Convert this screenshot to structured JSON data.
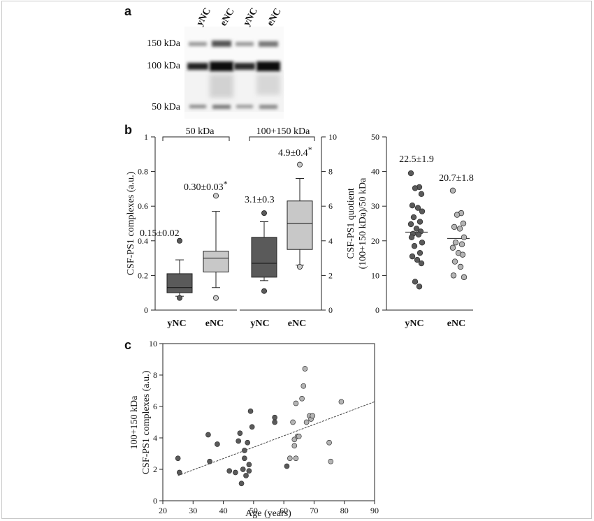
{
  "panel_labels": {
    "a": "a",
    "b": "b",
    "c": "c"
  },
  "blot": {
    "lanes": [
      "yNC",
      "eNC",
      "yNC",
      "eNC"
    ],
    "markers": [
      "150 kDa",
      "100 kDa",
      "50 kDa"
    ]
  },
  "chart_data": [
    {
      "id": "b-left-50kDa",
      "type": "box",
      "group_label": "50 kDa",
      "ylabel": "CSF-PS1 complexes (a.u.)",
      "ylim": [
        0,
        1
      ],
      "yticks": [
        "0",
        "0.2",
        "0.4",
        "0.6",
        "0.8",
        "1"
      ],
      "categories": [
        "yNC",
        "eNC"
      ],
      "boxes": [
        {
          "name": "yNC",
          "min": 0.08,
          "q1": 0.1,
          "median": 0.13,
          "q3": 0.21,
          "max": 0.29,
          "outliers": [
            0.4,
            0.07
          ],
          "annotation": "0.15±0.02",
          "color": "#5a5a5a"
        },
        {
          "name": "eNC",
          "min": 0.13,
          "q1": 0.22,
          "median": 0.3,
          "q3": 0.34,
          "max": 0.57,
          "outliers": [
            0.66,
            0.07
          ],
          "annotation": "0.30±0.03",
          "star": "*",
          "color": "#c8c8c8"
        }
      ]
    },
    {
      "id": "b-left-100-150kDa",
      "type": "box",
      "group_label": "100+150 kDa",
      "ylim": [
        0,
        10
      ],
      "yticks": [
        "0",
        "2",
        "4",
        "6",
        "8",
        "10"
      ],
      "categories": [
        "yNC",
        "eNC"
      ],
      "boxes": [
        {
          "name": "yNC",
          "min": 1.7,
          "q1": 1.9,
          "median": 2.7,
          "q3": 4.2,
          "max": 5.1,
          "outliers": [
            5.6,
            1.1
          ],
          "annotation": "3.1±0.3",
          "color": "#5a5a5a"
        },
        {
          "name": "eNC",
          "min": 2.6,
          "q1": 3.5,
          "median": 5.0,
          "q3": 6.3,
          "max": 7.6,
          "outliers": [
            8.4,
            2.5
          ],
          "annotation": "4.9±0.4",
          "star": "*",
          "color": "#c8c8c8"
        }
      ]
    },
    {
      "id": "b-right-quotient",
      "type": "scatter",
      "ylabel_line1": "CSF-PS1 quotient",
      "ylabel_line2": "(100+150 kDa)/50 kDa",
      "ylim": [
        0,
        50
      ],
      "yticks": [
        "0",
        "10",
        "20",
        "30",
        "40",
        "50"
      ],
      "categories": [
        "yNC",
        "eNC"
      ],
      "groups": [
        {
          "name": "yNC",
          "mean": 22.5,
          "annotation": "22.5±1.9",
          "color": "#5a5a5a",
          "values": [
            39.5,
            35.5,
            35.2,
            33.5,
            30.2,
            29.5,
            28.5,
            26.8,
            25.5,
            24.8,
            23.5,
            22.7,
            22.0,
            21.8,
            21.0,
            19.5,
            18.5,
            16.5,
            15.5,
            14.5,
            13.5,
            8.2,
            6.8
          ]
        },
        {
          "name": "eNC",
          "mean": 20.7,
          "annotation": "20.7±1.8",
          "color": "#b4b4b4",
          "values": [
            34.5,
            28.0,
            27.5,
            25.0,
            24.0,
            23.5,
            21.0,
            19.5,
            19.0,
            18.0,
            16.5,
            16.0,
            14.0,
            12.5,
            10.0,
            9.5
          ]
        }
      ]
    },
    {
      "id": "c-age-scatter",
      "type": "scatter",
      "xlabel": "Age (years)",
      "ylabel_line1": "100+150 kDa",
      "ylabel_line2": "CSF-PS1 complexes (a.u.)",
      "xlim": [
        20,
        90
      ],
      "ylim": [
        0,
        10
      ],
      "xticks": [
        "20",
        "30",
        "40",
        "50",
        "60",
        "70",
        "80",
        "90"
      ],
      "yticks": [
        "0",
        "2",
        "4",
        "6",
        "8",
        "10"
      ],
      "fit_line": [
        [
          25,
          1.6
        ],
        [
          90,
          6.3
        ]
      ],
      "series": [
        {
          "name": "yNC",
          "color": "#5a5a5a",
          "points": [
            [
              25,
              2.7
            ],
            [
              25.5,
              1.8
            ],
            [
              35,
              4.2
            ],
            [
              35.5,
              2.5
            ],
            [
              38,
              3.6
            ],
            [
              42,
              1.9
            ],
            [
              44,
              1.8
            ],
            [
              45,
              3.8
            ],
            [
              45.5,
              4.3
            ],
            [
              46,
              1.1
            ],
            [
              46.5,
              2.0
            ],
            [
              47,
              3.2
            ],
            [
              47,
              2.7
            ],
            [
              47.5,
              1.6
            ],
            [
              48,
              3.7
            ],
            [
              48.5,
              2.3
            ],
            [
              48.5,
              1.9
            ],
            [
              49,
              5.7
            ],
            [
              49.5,
              4.7
            ],
            [
              57,
              5.3
            ],
            [
              57,
              5.0
            ],
            [
              61,
              2.2
            ]
          ]
        },
        {
          "name": "eNC",
          "color": "#b4b4b4",
          "points": [
            [
              62,
              2.7
            ],
            [
              63,
              5.0
            ],
            [
              63.5,
              3.9
            ],
            [
              63.5,
              3.5
            ],
            [
              64,
              2.7
            ],
            [
              64,
              6.2
            ],
            [
              64.5,
              4.1
            ],
            [
              65,
              4.1
            ],
            [
              66,
              6.5
            ],
            [
              66.5,
              7.3
            ],
            [
              67,
              8.4
            ],
            [
              67.5,
              5.0
            ],
            [
              68.5,
              5.4
            ],
            [
              69,
              5.2
            ],
            [
              69.5,
              5.4
            ],
            [
              75,
              3.7
            ],
            [
              75.5,
              2.5
            ],
            [
              79,
              6.3
            ]
          ]
        }
      ]
    }
  ]
}
